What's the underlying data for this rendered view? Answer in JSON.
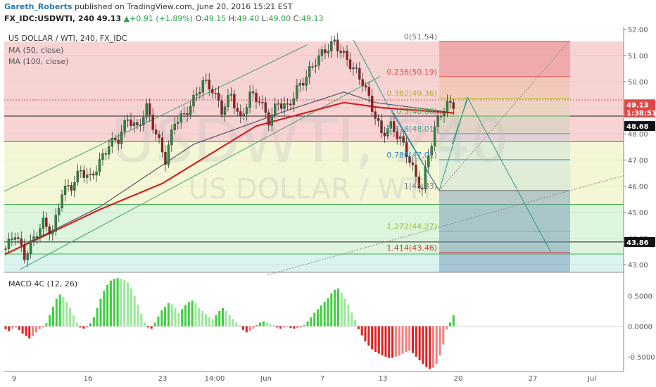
{
  "header": {
    "author": "Gareth_Roberts",
    "published_text": "published on TradingView.com, June 20, 2016 15:21 EST",
    "symbol": "FX_IDC:USDWTI, 240",
    "last": "49.13",
    "change_arrow": "▲",
    "change": "+0.91 (+1.89%)",
    "ohlc": [
      {
        "label": "O:",
        "value": "49.15"
      },
      {
        "label": "H:",
        "value": "49.40"
      },
      {
        "label": "L:",
        "value": "49.00"
      },
      {
        "label": "C:",
        "value": "49.13"
      }
    ]
  },
  "chart_data": [
    {
      "type": "candlestick",
      "title": "US DOLLAR / WTI, 240, FX_IDC",
      "watermark_symbol": "USDWTI, 240",
      "watermark_name": "US DOLLAR / WTI",
      "indicators": [
        "MA (50, close)",
        "MA (100, close)"
      ],
      "ylim": [
        42.7,
        52.1
      ],
      "yticks": [
        "52.00",
        "51.00",
        "50.00",
        "49.00",
        "48.00",
        "47.00",
        "46.00",
        "45.00",
        "44.00",
        "43.00"
      ],
      "xticks": [
        "9",
        "16",
        "23",
        "14:00",
        "Jun",
        "7",
        "13",
        "20",
        "27",
        "Jul"
      ],
      "close_path": [
        [
          0,
          43.6
        ],
        [
          3,
          44.2
        ],
        [
          6,
          43.3
        ],
        [
          9,
          44.0
        ],
        [
          12,
          44.6
        ],
        [
          15,
          44.2
        ],
        [
          18,
          45.8
        ],
        [
          21,
          46.0
        ],
        [
          24,
          46.6
        ],
        [
          27,
          46.3
        ],
        [
          30,
          46.9
        ],
        [
          33,
          47.6
        ],
        [
          36,
          47.8
        ],
        [
          39,
          48.6
        ],
        [
          42,
          48.2
        ],
        [
          45,
          49.0
        ],
        [
          48,
          48.0
        ],
        [
          51,
          47.0
        ],
        [
          54,
          48.5
        ],
        [
          57,
          48.7
        ],
        [
          60,
          49.3
        ],
        [
          63,
          50.0
        ],
        [
          66,
          49.7
        ],
        [
          69,
          48.9
        ],
        [
          72,
          49.5
        ],
        [
          75,
          48.5
        ],
        [
          78,
          49.5
        ],
        [
          81,
          49.3
        ],
        [
          84,
          48.5
        ],
        [
          87,
          49.2
        ],
        [
          90,
          49.0
        ],
        [
          93,
          49.7
        ],
        [
          96,
          50.2
        ],
        [
          99,
          50.8
        ],
        [
          102,
          51.2
        ],
        [
          105,
          51.5
        ],
        [
          108,
          51.0
        ],
        [
          111,
          50.5
        ],
        [
          114,
          50.0
        ],
        [
          117,
          49.0
        ],
        [
          120,
          48.0
        ],
        [
          123,
          48.3
        ],
        [
          126,
          47.8
        ],
        [
          129,
          47.0
        ],
        [
          131,
          46.3
        ],
        [
          133,
          45.9
        ],
        [
          135,
          47.2
        ],
        [
          137,
          48.2
        ],
        [
          139,
          48.8
        ],
        [
          141,
          49.1
        ],
        [
          143,
          49.13
        ]
      ],
      "ma50_path": [
        [
          0,
          43.4
        ],
        [
          30,
          45.2
        ],
        [
          60,
          47.6
        ],
        [
          90,
          48.9
        ],
        [
          108,
          49.6
        ],
        [
          118,
          49.2
        ],
        [
          143,
          48.8
        ]
      ],
      "ma100_path": [
        [
          0,
          43.4
        ],
        [
          30,
          45.1
        ],
        [
          50,
          46.1
        ],
        [
          80,
          48.3
        ],
        [
          108,
          49.2
        ],
        [
          120,
          49.0
        ],
        [
          143,
          48.8
        ]
      ],
      "fibonacci": [
        {
          "label": "0(51.54)",
          "level": 51.54,
          "color": "#777777"
        },
        {
          "label": "0.236(50.19)",
          "level": 50.19,
          "color": "#e04848"
        },
        {
          "label": "0.382(49.36)",
          "level": 49.36,
          "color": "#b7b12a"
        },
        {
          "label": "0.5(48.68)",
          "level": 48.68,
          "color": "#4caf50"
        },
        {
          "label": "0.618(48.01)",
          "level": 48.01,
          "color": "#3aa6a0"
        },
        {
          "label": "0.786(47.01)",
          "level": 47.01,
          "color": "#2b88c7"
        },
        {
          "label": "1(45.83)",
          "level": 45.83,
          "color": "#777777"
        },
        {
          "label": "1.272(44.27)",
          "level": 44.27,
          "color": "#9bbf2a"
        },
        {
          "label": "1.414(43.46)",
          "level": 43.46,
          "color": "#d13c3c"
        }
      ],
      "horizontal_levels": [
        {
          "level": 49.3,
          "color": "#e04848",
          "style": "dotted"
        },
        {
          "level": 48.68,
          "color": "#222222",
          "style": "solid"
        },
        {
          "level": 47.7,
          "color": "#e04848",
          "style": "solid"
        },
        {
          "level": 45.3,
          "color": "#4caf50",
          "style": "solid"
        },
        {
          "level": 43.86,
          "color": "#222222",
          "style": "solid"
        },
        {
          "level": 43.4,
          "color": "#4caf50",
          "style": "solid"
        }
      ],
      "price_labels": [
        {
          "text": "49.13",
          "level": 49.13,
          "color": "#e04848"
        },
        {
          "text": "1:38:51",
          "level": 48.82,
          "color": "#e04848"
        },
        {
          "text": "48.68",
          "level": 48.3,
          "color": "#111111"
        },
        {
          "text": "43.86",
          "level": 43.86,
          "color": "#111111"
        }
      ]
    },
    {
      "type": "histogram",
      "title": "MACD 4C (12, 26)",
      "ylim": [
        -0.72,
        0.85
      ],
      "yticks": [
        "0.5000",
        "0.0000",
        "-0.5000"
      ],
      "tick_values": [
        0.5,
        0,
        -0.5
      ],
      "values": [
        -0.05,
        -0.08,
        -0.04,
        -0.02,
        -0.06,
        -0.12,
        -0.16,
        -0.2,
        -0.16,
        -0.1,
        -0.05,
        -0.02,
        0.05,
        0.18,
        0.32,
        0.45,
        0.52,
        0.48,
        0.4,
        0.3,
        0.18,
        0.06,
        -0.02,
        -0.04,
        -0.02,
        0.05,
        0.15,
        0.3,
        0.45,
        0.58,
        0.68,
        0.75,
        0.78,
        0.79,
        0.78,
        0.76,
        0.72,
        0.62,
        0.5,
        0.35,
        0.2,
        0.06,
        -0.02,
        -0.04,
        0.06,
        0.16,
        0.26,
        0.32,
        0.38,
        0.36,
        0.3,
        0.22,
        0.28,
        0.35,
        0.4,
        0.42,
        0.38,
        0.3,
        0.25,
        0.2,
        0.15,
        0.12,
        0.18,
        0.25,
        0.3,
        0.25,
        0.18,
        0.12,
        0.06,
        0.02,
        -0.06,
        -0.1,
        -0.08,
        -0.04,
        0.02,
        0.06,
        0.08,
        0.06,
        0.03,
        0.02,
        -0.02,
        -0.04,
        -0.02,
        -0.01,
        -0.03,
        -0.04,
        -0.03,
        -0.02,
        0.02,
        0.08,
        0.15,
        0.22,
        0.28,
        0.34,
        0.4,
        0.46,
        0.54,
        0.6,
        0.62,
        0.55,
        0.45,
        0.35,
        0.22,
        0.1,
        -0.05,
        -0.15,
        -0.25,
        -0.32,
        -0.38,
        -0.42,
        -0.45,
        -0.48,
        -0.5,
        -0.52,
        -0.52,
        -0.5,
        -0.48,
        -0.45,
        -0.42,
        -0.4,
        -0.44,
        -0.5,
        -0.56,
        -0.62,
        -0.67,
        -0.7,
        -0.68,
        -0.62,
        -0.48,
        -0.3,
        -0.05,
        0.06,
        0.18
      ]
    }
  ]
}
